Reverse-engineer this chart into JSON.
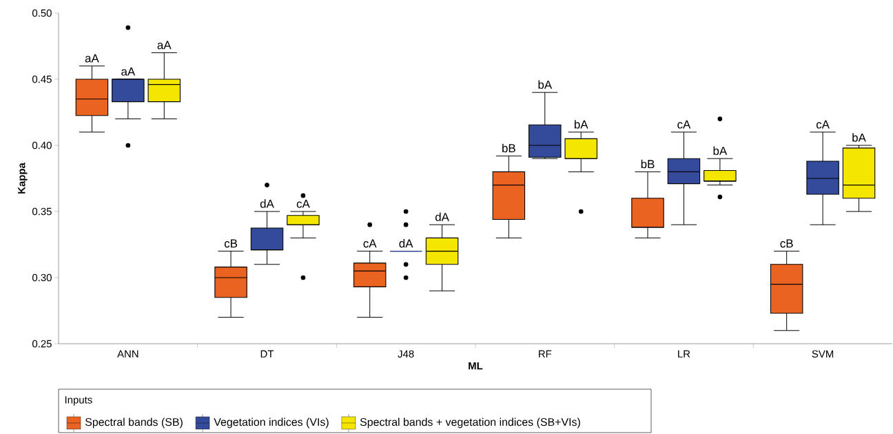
{
  "chart_data": {
    "type": "box",
    "xlabel": "ML",
    "ylabel": "Kappa",
    "legend_title": "Inputs",
    "legend": "bottom",
    "categories": [
      "ANN",
      "DT",
      "J48",
      "RF",
      "LR",
      "SVM"
    ],
    "ylim": [
      0.25,
      0.5
    ],
    "yticks": [
      {
        "value": 0.25,
        "label": "0.25"
      },
      {
        "value": 0.3,
        "label": "0.30"
      },
      {
        "value": 0.35,
        "label": "0.35"
      },
      {
        "value": 0.4,
        "label": "0.40"
      },
      {
        "value": 0.45,
        "label": "0.45"
      },
      {
        "value": 0.5,
        "label": "0.50"
      }
    ],
    "marker": "circle",
    "series": [
      {
        "name": "Spectral bands (SB)",
        "color": "#eb6320",
        "boxes": [
          {
            "low": 0.41,
            "q1": 0.4225,
            "median": 0.435,
            "q3": 0.45,
            "high": 0.46
          },
          {
            "low": 0.27,
            "q1": 0.285,
            "median": 0.3,
            "q3": 0.308,
            "high": 0.32
          },
          {
            "low": 0.27,
            "q1": 0.293,
            "median": 0.305,
            "q3": 0.311,
            "high": 0.32,
            "outliers": [
              0.34
            ]
          },
          {
            "low": 0.33,
            "q1": 0.344,
            "median": 0.37,
            "q3": 0.38,
            "high": 0.392
          },
          {
            "low": 0.33,
            "q1": 0.338,
            "median": 0.338,
            "q3": 0.36,
            "high": 0.38
          },
          {
            "low": 0.26,
            "q1": 0.273,
            "median": 0.295,
            "q3": 0.31,
            "high": 0.32
          }
        ]
      },
      {
        "name": "Vegetation indices (VIs)",
        "color": "#344a9a",
        "boxes": [
          {
            "low": 0.42,
            "q1": 0.433,
            "median": 0.45,
            "q3": 0.45,
            "high": 0.45,
            "outliers": [
              0.489,
              0.4
            ]
          },
          {
            "low": 0.31,
            "q1": 0.321,
            "median": 0.321,
            "q3": 0.3375,
            "high": 0.35,
            "outliers": [
              0.37
            ]
          },
          {
            "low": 0.32,
            "q1": 0.32,
            "median": 0.32,
            "q3": 0.32,
            "high": 0.32,
            "outliers": [
              0.35,
              0.34,
              0.31,
              0.3
            ]
          },
          {
            "low": 0.39,
            "q1": 0.391,
            "median": 0.4,
            "q3": 0.4155,
            "high": 0.44
          },
          {
            "low": 0.34,
            "q1": 0.371,
            "median": 0.38,
            "q3": 0.39,
            "high": 0.41
          },
          {
            "low": 0.34,
            "q1": 0.363,
            "median": 0.375,
            "q3": 0.388,
            "high": 0.41
          }
        ]
      },
      {
        "name": "Spectral bands + vegetation indices (SB+VIs)",
        "color": "#f5e600",
        "boxes": [
          {
            "low": 0.42,
            "q1": 0.433,
            "median": 0.446,
            "q3": 0.45,
            "high": 0.47
          },
          {
            "low": 0.33,
            "q1": 0.34,
            "median": 0.34,
            "q3": 0.347,
            "high": 0.35,
            "outliers": [
              0.362,
              0.3
            ]
          },
          {
            "low": 0.29,
            "q1": 0.31,
            "median": 0.32,
            "q3": 0.33,
            "high": 0.34
          },
          {
            "low": 0.38,
            "q1": 0.39,
            "median": 0.39,
            "q3": 0.405,
            "high": 0.41,
            "outliers": [
              0.35
            ]
          },
          {
            "low": 0.37,
            "q1": 0.373,
            "median": 0.373,
            "q3": 0.381,
            "high": 0.39,
            "outliers": [
              0.42,
              0.361
            ]
          },
          {
            "low": 0.35,
            "q1": 0.36,
            "median": 0.37,
            "q3": 0.398,
            "high": 0.4
          }
        ]
      }
    ],
    "annotations": [
      "aA",
      "aA",
      "aA",
      "cB",
      "dA",
      "cA",
      "cA",
      "dA",
      "dA",
      "bB",
      "bA",
      "bA",
      "bB",
      "cA",
      "bA",
      "cB",
      "cA",
      "bA"
    ]
  }
}
